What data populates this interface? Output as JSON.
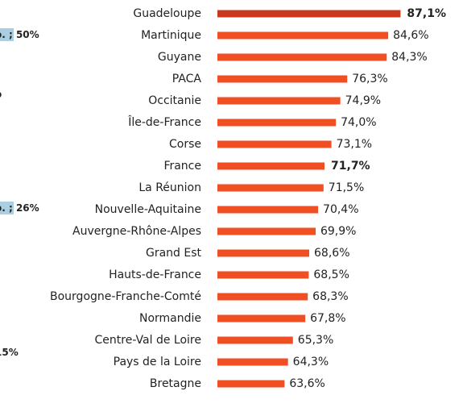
{
  "chart_data": {
    "type": "barh",
    "categories": [
      "Guadeloupe",
      "Martinique",
      "Guyane",
      "PACA",
      "Occitanie",
      "Île-de-France",
      "Corse",
      "France",
      "La Réunion",
      "Nouvelle-Aquitaine",
      "Auvergne-Rhône-Alpes",
      "Grand Est",
      "Hauts-de-France",
      "Bourgogne-Franche-Comté",
      "Normandie",
      "Centre-Val de Loire",
      "Pays de la Loire",
      "Bretagne"
    ],
    "values": [
      87.1,
      84.6,
      84.3,
      76.3,
      74.9,
      74.0,
      73.1,
      71.7,
      71.5,
      70.4,
      69.9,
      68.6,
      68.5,
      68.3,
      67.8,
      65.3,
      64.3,
      63.6
    ],
    "value_labels": [
      "87,1%",
      "84,6%",
      "84,3%",
      "76,3%",
      "74,9%",
      "74,0%",
      "73,1%",
      "71,7%",
      "71,5%",
      "70,4%",
      "69,9%",
      "68,6%",
      "68,5%",
      "68,3%",
      "67,8%",
      "65,3%",
      "64,3%",
      "63,6%"
    ],
    "colors": [
      "#c8381e",
      "#f04e23",
      "#f04e23",
      "#f04e23",
      "#f04e23",
      "#f04e23",
      "#f04e23",
      "#f04e23",
      "#f04e23",
      "#f04e23",
      "#f04e23",
      "#f04e23",
      "#f04e23",
      "#f04e23",
      "#f04e23",
      "#f04e23",
      "#f04e23",
      "#f04e23"
    ],
    "bold": [
      true,
      false,
      false,
      false,
      false,
      false,
      false,
      true,
      false,
      false,
      false,
      false,
      false,
      false,
      false,
      false,
      false,
      false
    ],
    "xlim": [
      50,
      100
    ],
    "annotations": [
      {
        "highlight": "o. ;",
        "text": " 50%"
      },
      {
        "highlight": "",
        "text": "o"
      },
      {
        "highlight": "o. ;",
        "text": " 26%"
      },
      {
        "highlight": "",
        "text": "15%"
      }
    ]
  }
}
